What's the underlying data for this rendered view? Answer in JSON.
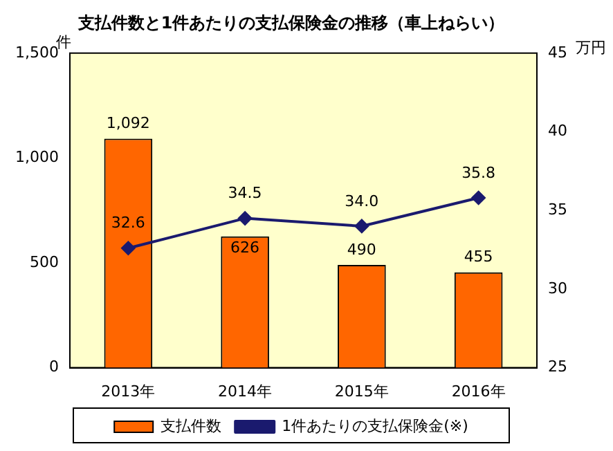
{
  "chart_data": {
    "type": "bar",
    "title": "支払件数と1件あたりの支払保険金の推移（車上ねらい）",
    "ylabel": "件",
    "y2label": "万円",
    "categories": [
      "2013年",
      "2014年",
      "2015年",
      "2016年"
    ],
    "series": [
      {
        "name": "支払件数",
        "color": "#ff6600",
        "values": [
          1092,
          626,
          490,
          455
        ],
        "value_labels": [
          "1,092",
          "626",
          "490",
          "455"
        ]
      },
      {
        "name": "1件あたりの支払保険金(※)",
        "type": "line",
        "axis": "y2",
        "color": "#1a1a6e",
        "values": [
          32.6,
          34.5,
          34.0,
          35.8
        ],
        "value_labels": [
          "32.6",
          "34.5",
          "34.0",
          "35.8"
        ]
      }
    ],
    "ylim": [
      0,
      1500
    ],
    "yticks": [
      0,
      {
        "value": 500,
        "label": "500"
      },
      {
        "value": 1000,
        "label": "1,000"
      },
      {
        "value": 1500,
        "label": "1,500"
      }
    ],
    "y2lim": [
      25,
      45
    ],
    "y2ticks": [
      25,
      30,
      35,
      40,
      45
    ],
    "data_labels": true,
    "grid": false,
    "legend": "bottom",
    "marker": "diamond"
  }
}
